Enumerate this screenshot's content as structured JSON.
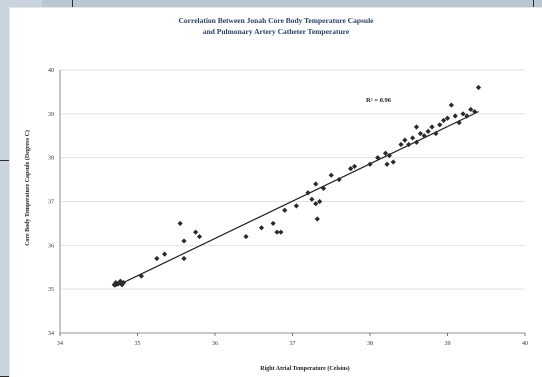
{
  "chart_data": {
    "type": "scatter",
    "title": "Correlation Between Jonah Core Body Temperature Capsule",
    "subtitle": "and Pulmonary Artery Catheter Temperature",
    "xlabel": "Right Atrial Temperature (Celsius)",
    "ylabel": "Core Body Temperature Capsule (Degrees C)",
    "xlim": [
      34,
      40
    ],
    "ylim": [
      34,
      40
    ],
    "x_ticks": [
      "34",
      "35",
      "36",
      "37",
      "38",
      "39",
      "40"
    ],
    "y_ticks": [
      "34",
      "35",
      "36",
      "37",
      "38",
      "39",
      "40"
    ],
    "annotation": "R² = 0.96",
    "trendline": {
      "x": [
        34.7,
        39.4
      ],
      "y": [
        35.05,
        39.05
      ]
    },
    "points": [
      {
        "x": 34.7,
        "y": 35.1
      },
      {
        "x": 34.72,
        "y": 35.15
      },
      {
        "x": 34.75,
        "y": 35.12
      },
      {
        "x": 34.78,
        "y": 35.18
      },
      {
        "x": 34.8,
        "y": 35.1
      },
      {
        "x": 34.82,
        "y": 35.15
      },
      {
        "x": 35.05,
        "y": 35.3
      },
      {
        "x": 35.25,
        "y": 35.7
      },
      {
        "x": 35.35,
        "y": 35.8
      },
      {
        "x": 35.55,
        "y": 36.5
      },
      {
        "x": 35.6,
        "y": 36.1
      },
      {
        "x": 35.6,
        "y": 35.7
      },
      {
        "x": 35.75,
        "y": 36.3
      },
      {
        "x": 35.8,
        "y": 36.2
      },
      {
        "x": 36.4,
        "y": 36.2
      },
      {
        "x": 36.6,
        "y": 36.4
      },
      {
        "x": 36.75,
        "y": 36.5
      },
      {
        "x": 36.8,
        "y": 36.3
      },
      {
        "x": 36.85,
        "y": 36.3
      },
      {
        "x": 36.9,
        "y": 36.8
      },
      {
        "x": 37.05,
        "y": 36.9
      },
      {
        "x": 37.2,
        "y": 37.2
      },
      {
        "x": 37.25,
        "y": 37.05
      },
      {
        "x": 37.3,
        "y": 37.4
      },
      {
        "x": 37.3,
        "y": 36.95
      },
      {
        "x": 37.32,
        "y": 36.6
      },
      {
        "x": 37.35,
        "y": 37.0
      },
      {
        "x": 37.4,
        "y": 37.3
      },
      {
        "x": 37.5,
        "y": 37.6
      },
      {
        "x": 37.6,
        "y": 37.5
      },
      {
        "x": 37.75,
        "y": 37.75
      },
      {
        "x": 37.8,
        "y": 37.8
      },
      {
        "x": 38.0,
        "y": 37.85
      },
      {
        "x": 38.1,
        "y": 38.0
      },
      {
        "x": 38.2,
        "y": 38.1
      },
      {
        "x": 38.22,
        "y": 37.85
      },
      {
        "x": 38.25,
        "y": 38.05
      },
      {
        "x": 38.3,
        "y": 37.9
      },
      {
        "x": 38.4,
        "y": 38.3
      },
      {
        "x": 38.45,
        "y": 38.4
      },
      {
        "x": 38.5,
        "y": 38.3
      },
      {
        "x": 38.55,
        "y": 38.45
      },
      {
        "x": 38.6,
        "y": 38.35
      },
      {
        "x": 38.65,
        "y": 38.55
      },
      {
        "x": 38.7,
        "y": 38.5
      },
      {
        "x": 38.75,
        "y": 38.6
      },
      {
        "x": 38.8,
        "y": 38.7
      },
      {
        "x": 38.85,
        "y": 38.55
      },
      {
        "x": 38.9,
        "y": 38.75
      },
      {
        "x": 38.95,
        "y": 38.85
      },
      {
        "x": 39.0,
        "y": 38.9
      },
      {
        "x": 39.05,
        "y": 39.2
      },
      {
        "x": 39.1,
        "y": 38.95
      },
      {
        "x": 39.15,
        "y": 38.8
      },
      {
        "x": 39.2,
        "y": 39.0
      },
      {
        "x": 39.25,
        "y": 38.95
      },
      {
        "x": 39.3,
        "y": 39.1
      },
      {
        "x": 39.35,
        "y": 39.05
      },
      {
        "x": 39.4,
        "y": 39.6
      },
      {
        "x": 38.6,
        "y": 38.7
      }
    ]
  }
}
